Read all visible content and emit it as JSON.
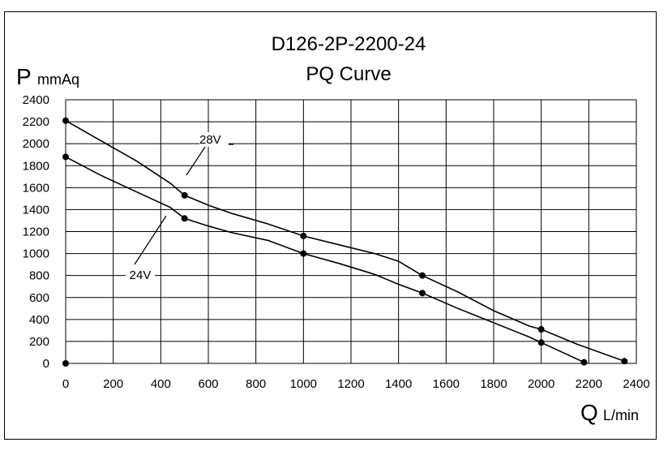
{
  "chart_data": {
    "type": "line",
    "title": "D126-2P-2200-24",
    "subtitle": "PQ Curve",
    "ylabel": {
      "symbol": "P",
      "unit": "mmAq"
    },
    "xlabel": {
      "symbol": "Q",
      "unit": "L/min"
    },
    "xlim": [
      0,
      2400
    ],
    "ylim": [
      0,
      2400
    ],
    "xticks": [
      "0",
      "200",
      "400",
      "600",
      "800",
      "1000",
      "1200",
      "1400",
      "1600",
      "1800",
      "2000",
      "2200",
      "2400"
    ],
    "yticks": [
      "0",
      "200",
      "400",
      "600",
      "800",
      "1000",
      "1200",
      "1400",
      "1600",
      "1800",
      "2000",
      "2200",
      "2400"
    ],
    "grid": true,
    "series": [
      {
        "name": "28V",
        "color": "#000000",
        "x": [
          0,
          500,
          1000,
          1500,
          2000,
          2350
        ],
        "y": [
          2210,
          1530,
          1160,
          800,
          310,
          20
        ],
        "line": [
          [
            0,
            2210
          ],
          [
            150,
            2025
          ],
          [
            300,
            1840
          ],
          [
            440,
            1640
          ],
          [
            500,
            1530
          ],
          [
            600,
            1440
          ],
          [
            700,
            1365
          ],
          [
            850,
            1270
          ],
          [
            1000,
            1160
          ],
          [
            1150,
            1080
          ],
          [
            1300,
            1000
          ],
          [
            1400,
            930
          ],
          [
            1500,
            800
          ],
          [
            1650,
            650
          ],
          [
            1800,
            480
          ],
          [
            1950,
            340
          ],
          [
            2000,
            310
          ],
          [
            2150,
            175
          ],
          [
            2350,
            20
          ]
        ],
        "point_labels": [
          "",
          "",
          "",
          "",
          "",
          ""
        ]
      },
      {
        "name": "24V",
        "color": "#000000",
        "x": [
          0,
          500,
          1000,
          1500,
          2000,
          2180
        ],
        "y": [
          1880,
          1320,
          1000,
          640,
          190,
          10
        ],
        "line": [
          [
            0,
            1880
          ],
          [
            150,
            1710
          ],
          [
            300,
            1560
          ],
          [
            440,
            1420
          ],
          [
            500,
            1320
          ],
          [
            600,
            1250
          ],
          [
            700,
            1190
          ],
          [
            850,
            1120
          ],
          [
            1000,
            1000
          ],
          [
            1150,
            910
          ],
          [
            1300,
            810
          ],
          [
            1400,
            720
          ],
          [
            1500,
            640
          ],
          [
            1650,
            500
          ],
          [
            1800,
            370
          ],
          [
            1950,
            240
          ],
          [
            2000,
            190
          ],
          [
            2100,
            90
          ],
          [
            2180,
            10
          ]
        ],
        "point_labels": [
          "",
          "",
          "",
          "",
          "",
          ""
        ]
      }
    ],
    "extra_points": [
      {
        "x": 0,
        "y": 0
      }
    ],
    "annotations": [
      {
        "text": "28V",
        "series": "28V"
      },
      {
        "text": "24V",
        "series": "24V"
      }
    ]
  }
}
